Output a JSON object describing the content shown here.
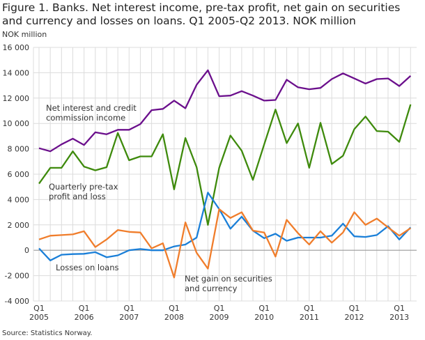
{
  "title": "Figure 1. Banks. Net interest income, pre-tax profit, net gain on securities and currency and losses on loans. Q1 2005-Q2 2013. NOK million",
  "source": "Source: Statistics Norway.",
  "chart_data": {
    "type": "line",
    "ylabel": "NOK million",
    "ylim": [
      -4000,
      16000
    ],
    "yticks": [
      "-4 000",
      "-2 000",
      "0",
      "2 000",
      "4 000",
      "6 000",
      "8 000",
      "10 000",
      "12 000",
      "14 000",
      "16 000"
    ],
    "ytick_values": [
      -4000,
      -2000,
      0,
      2000,
      4000,
      6000,
      8000,
      10000,
      12000,
      14000,
      16000
    ],
    "xtick_labels": [
      [
        "Q1",
        "2005"
      ],
      [
        "Q1",
        "2006"
      ],
      [
        "Q1",
        "2007"
      ],
      [
        "Q1",
        "2008"
      ],
      [
        "Q1",
        "2009"
      ],
      [
        "Q1",
        "2010"
      ],
      [
        "Q1",
        "2011"
      ],
      [
        "Q1",
        "2012"
      ],
      [
        "Q1",
        "2013"
      ]
    ],
    "x_start": "Q1 2005",
    "x_end": "Q2 2013",
    "n_quarters": 34,
    "grid": true,
    "series": [
      {
        "name": "Net interest and credit commission income",
        "color": "#6b0f8c",
        "label_lines": [
          "Net interest and credit",
          "commission income"
        ],
        "values": [
          8050,
          7800,
          8350,
          8800,
          8300,
          9300,
          9150,
          9500,
          9500,
          9950,
          11050,
          11150,
          11800,
          11200,
          13050,
          14200,
          12150,
          12200,
          12550,
          12200,
          11800,
          11850,
          13450,
          12850,
          12700,
          12800,
          13500,
          13950,
          13550,
          13150,
          13500,
          13550,
          12950,
          13750
        ]
      },
      {
        "name": "Quarterly pre-tax profit and loss",
        "color": "#3e8a0c",
        "label_lines": [
          "Quarterly pre-tax",
          "profit and loss"
        ],
        "values": [
          5250,
          6500,
          6500,
          7800,
          6600,
          6300,
          6550,
          9250,
          7100,
          7400,
          7400,
          9150,
          4800,
          8850,
          6550,
          2000,
          6500,
          9050,
          7850,
          5550,
          8350,
          11100,
          8450,
          10000,
          6500,
          10050,
          6800,
          7450,
          9550,
          10550,
          9400,
          9350,
          8550,
          11500
        ]
      },
      {
        "name": "Losses on loans",
        "color": "#1a7fd8",
        "label_lines": [
          "Losses on loans"
        ],
        "values": [
          150,
          -800,
          -350,
          -300,
          -280,
          -150,
          -550,
          -400,
          0,
          100,
          0,
          0,
          300,
          450,
          1000,
          4550,
          3250,
          1700,
          2650,
          1550,
          950,
          1300,
          750,
          1000,
          1000,
          1000,
          1150,
          2100,
          1100,
          1050,
          1200,
          1900,
          850,
          1800
        ]
      },
      {
        "name": "Net gain on securities and currency",
        "color": "#f07d2b",
        "label_lines": [
          "Net gain on securities",
          "and currency"
        ],
        "values": [
          850,
          1150,
          1200,
          1250,
          1500,
          250,
          850,
          1600,
          1450,
          1400,
          150,
          550,
          -2150,
          2200,
          -200,
          -1450,
          3250,
          2550,
          3000,
          1550,
          1400,
          -500,
          2400,
          1350,
          450,
          1500,
          600,
          1400,
          3000,
          2000,
          2500,
          1800,
          1150,
          1750
        ]
      }
    ]
  }
}
